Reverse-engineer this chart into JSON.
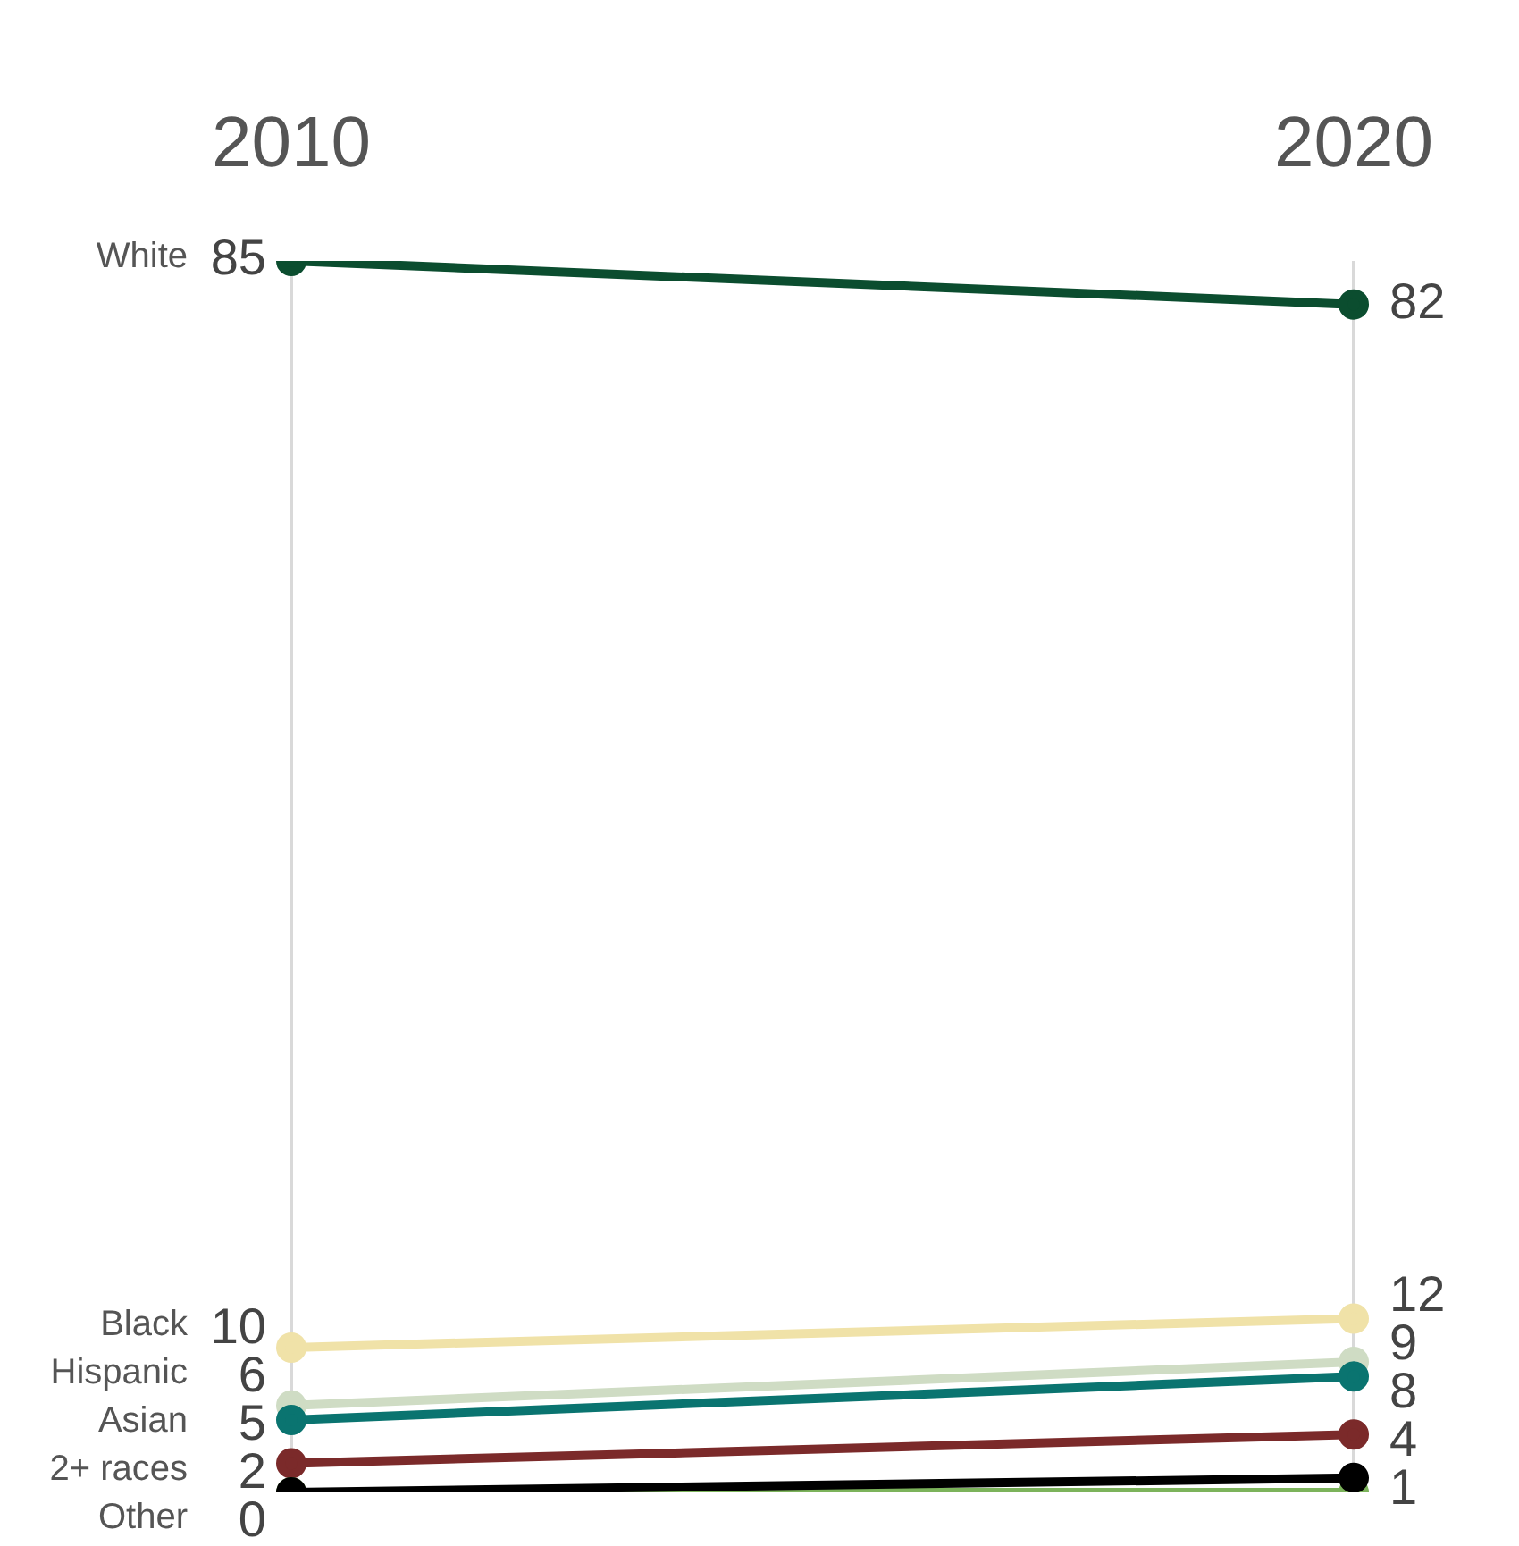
{
  "chart_data": {
    "type": "line",
    "categories": [
      "2010",
      "2020"
    ],
    "grid": "x",
    "legend": false,
    "marker": "circle",
    "tick_labels": "x",
    "series": [
      {
        "name": "White",
        "color": "#0b4d2f",
        "values": [
          85,
          82
        ],
        "value_labels": [
          "85",
          "82"
        ]
      },
      {
        "name": "Black",
        "color": "#f0e2a8",
        "values": [
          10,
          12
        ],
        "value_labels": [
          "10",
          "12"
        ]
      },
      {
        "name": "Hispanic",
        "color": "#cfdcc4",
        "values": [
          6,
          9
        ],
        "value_labels": [
          "6",
          "9"
        ]
      },
      {
        "name": "Asian",
        "color": "#0a7470",
        "values": [
          5,
          8
        ],
        "value_labels": [
          "5",
          "8"
        ]
      },
      {
        "name": "2+ races",
        "color": "#7b2a2a",
        "values": [
          2,
          4
        ],
        "value_labels": [
          "2",
          "4"
        ]
      },
      {
        "color": "#7cb35b",
        "values": [
          0,
          0
        ],
        "value_labels": [
          null,
          null
        ]
      },
      {
        "name": "Other",
        "color": "#000000",
        "values": [
          0,
          1
        ],
        "value_labels": [
          "0",
          "1"
        ]
      }
    ]
  }
}
